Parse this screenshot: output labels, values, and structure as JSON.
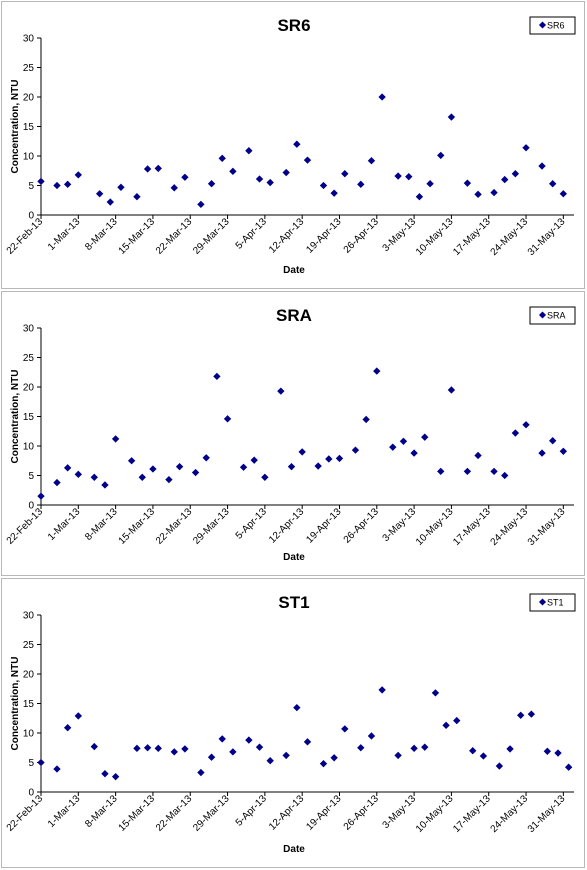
{
  "chart_data": [
    {
      "type": "scatter",
      "title": "SR6",
      "xlabel": "Date",
      "ylabel": "Concentration, NTU",
      "ylim": [
        0,
        30
      ],
      "yticks": [
        "0",
        "5",
        "10",
        "15",
        "20",
        "25",
        "30"
      ],
      "xlim": [
        "2013-02-22",
        "2013-06-02"
      ],
      "xticks": [
        "22-Feb-13",
        "1-Mar-13",
        "8-Mar-13",
        "15-Mar-13",
        "22-Mar-13",
        "29-Mar-13",
        "5-Apr-13",
        "12-Apr-13",
        "19-Apr-13",
        "26-Apr-13",
        "3-May-13",
        "10-May-13",
        "17-May-13",
        "24-May-13",
        "31-May-13"
      ],
      "legend_position": "top-right",
      "color": "#00008B",
      "series": [
        {
          "name": "SR6",
          "x": [
            "2013-02-22",
            "2013-02-25",
            "2013-02-27",
            "2013-03-01",
            "2013-03-05",
            "2013-03-07",
            "2013-03-09",
            "2013-03-12",
            "2013-03-14",
            "2013-03-16",
            "2013-03-19",
            "2013-03-21",
            "2013-03-24",
            "2013-03-26",
            "2013-03-28",
            "2013-03-30",
            "2013-04-02",
            "2013-04-04",
            "2013-04-06",
            "2013-04-09",
            "2013-04-11",
            "2013-04-13",
            "2013-04-16",
            "2013-04-18",
            "2013-04-20",
            "2013-04-23",
            "2013-04-25",
            "2013-04-27",
            "2013-04-30",
            "2013-05-02",
            "2013-05-04",
            "2013-05-06",
            "2013-05-08",
            "2013-05-10",
            "2013-05-13",
            "2013-05-15",
            "2013-05-18",
            "2013-05-20",
            "2013-05-22",
            "2013-05-24",
            "2013-05-27",
            "2013-05-29",
            "2013-05-31"
          ],
          "y": [
            5.7,
            5.0,
            5.2,
            6.8,
            3.6,
            2.2,
            4.7,
            3.1,
            7.8,
            7.9,
            4.6,
            6.4,
            1.8,
            5.3,
            9.6,
            7.4,
            10.9,
            6.1,
            5.5,
            7.2,
            12.0,
            9.3,
            5.0,
            3.7,
            7.0,
            5.2,
            9.2,
            20.0,
            6.6,
            6.5,
            3.1,
            5.3,
            10.1,
            16.6,
            5.4,
            3.5,
            3.8,
            6.0,
            7.0,
            11.4,
            8.3,
            5.3,
            3.6
          ]
        }
      ]
    },
    {
      "type": "scatter",
      "title": "SRA",
      "xlabel": "Date",
      "ylabel": "Concentration, NTU",
      "ylim": [
        0,
        30
      ],
      "yticks": [
        "0",
        "5",
        "10",
        "15",
        "20",
        "25",
        "30"
      ],
      "xlim": [
        "2013-02-22",
        "2013-06-02"
      ],
      "xticks": [
        "22-Feb-13",
        "1-Mar-13",
        "8-Mar-13",
        "15-Mar-13",
        "22-Mar-13",
        "29-Mar-13",
        "5-Apr-13",
        "12-Apr-13",
        "19-Apr-13",
        "26-Apr-13",
        "3-May-13",
        "10-May-13",
        "17-May-13",
        "24-May-13",
        "31-May-13"
      ],
      "legend_position": "top-right",
      "color": "#00008B",
      "series": [
        {
          "name": "SRA",
          "x": [
            "2013-02-22",
            "2013-02-25",
            "2013-02-27",
            "2013-03-01",
            "2013-03-04",
            "2013-03-06",
            "2013-03-08",
            "2013-03-11",
            "2013-03-13",
            "2013-03-15",
            "2013-03-18",
            "2013-03-20",
            "2013-03-23",
            "2013-03-25",
            "2013-03-27",
            "2013-03-29",
            "2013-04-01",
            "2013-04-03",
            "2013-04-05",
            "2013-04-08",
            "2013-04-10",
            "2013-04-12",
            "2013-04-15",
            "2013-04-17",
            "2013-04-19",
            "2013-04-22",
            "2013-04-24",
            "2013-04-26",
            "2013-04-29",
            "2013-05-01",
            "2013-05-03",
            "2013-05-05",
            "2013-05-08",
            "2013-05-10",
            "2013-05-13",
            "2013-05-15",
            "2013-05-18",
            "2013-05-20",
            "2013-05-22",
            "2013-05-24",
            "2013-05-27",
            "2013-05-29",
            "2013-05-31"
          ],
          "y": [
            1.5,
            3.8,
            6.3,
            5.2,
            4.7,
            3.4,
            11.2,
            7.5,
            4.7,
            6.1,
            4.3,
            6.5,
            5.5,
            8.0,
            21.8,
            14.6,
            6.4,
            7.6,
            4.7,
            19.3,
            6.5,
            9.0,
            6.6,
            7.8,
            7.9,
            9.3,
            14.5,
            22.7,
            9.8,
            10.8,
            8.8,
            11.5,
            5.7,
            19.5,
            5.7,
            8.4,
            5.7,
            5.0,
            12.2,
            13.6,
            8.8,
            10.9,
            9.1
          ]
        }
      ]
    },
    {
      "type": "scatter",
      "title": "ST1",
      "xlabel": "Date",
      "ylabel": "Concentration, NTU",
      "ylim": [
        0,
        30
      ],
      "yticks": [
        "0",
        "5",
        "10",
        "15",
        "20",
        "25",
        "30"
      ],
      "xlim": [
        "2013-02-22",
        "2013-06-02"
      ],
      "xticks": [
        "22-Feb-13",
        "1-Mar-13",
        "8-Mar-13",
        "15-Mar-13",
        "22-Mar-13",
        "29-Mar-13",
        "5-Apr-13",
        "12-Apr-13",
        "19-Apr-13",
        "26-Apr-13",
        "3-May-13",
        "10-May-13",
        "17-May-13",
        "24-May-13",
        "31-May-13"
      ],
      "legend_position": "top-right",
      "color": "#00008B",
      "series": [
        {
          "name": "ST1",
          "x": [
            "2013-02-22",
            "2013-02-25",
            "2013-02-27",
            "2013-03-01",
            "2013-03-04",
            "2013-03-06",
            "2013-03-08",
            "2013-03-12",
            "2013-03-14",
            "2013-03-16",
            "2013-03-19",
            "2013-03-21",
            "2013-03-24",
            "2013-03-26",
            "2013-03-28",
            "2013-03-30",
            "2013-04-02",
            "2013-04-04",
            "2013-04-06",
            "2013-04-09",
            "2013-04-11",
            "2013-04-13",
            "2013-04-16",
            "2013-04-18",
            "2013-04-20",
            "2013-04-23",
            "2013-04-25",
            "2013-04-27",
            "2013-04-30",
            "2013-05-03",
            "2013-05-05",
            "2013-05-07",
            "2013-05-09",
            "2013-05-11",
            "2013-05-14",
            "2013-05-16",
            "2013-05-19",
            "2013-05-21",
            "2013-05-23",
            "2013-05-25",
            "2013-05-28",
            "2013-05-30",
            "2013-06-01"
          ],
          "y": [
            5.0,
            3.9,
            10.9,
            12.9,
            7.7,
            3.1,
            2.6,
            7.4,
            7.5,
            7.4,
            6.8,
            7.3,
            3.3,
            5.9,
            9.0,
            6.8,
            8.8,
            7.6,
            5.3,
            6.2,
            14.3,
            8.5,
            4.8,
            5.8,
            10.7,
            7.5,
            9.5,
            17.3,
            6.2,
            7.4,
            7.6,
            16.8,
            11.3,
            12.1,
            7.0,
            6.1,
            4.4,
            7.3,
            13.0,
            13.2,
            6.9,
            6.6,
            4.2
          ]
        }
      ]
    }
  ]
}
